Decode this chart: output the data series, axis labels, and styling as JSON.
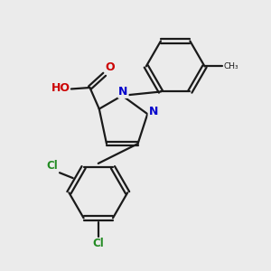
{
  "background_color": "#ebebeb",
  "bond_color": "#1a1a1a",
  "bond_width": 1.6,
  "dbo": 0.07,
  "figsize": [
    3.0,
    3.0
  ],
  "dpi": 100,
  "xlim": [
    0,
    10
  ],
  "ylim": [
    0,
    10
  ],
  "n_color": "#0000cc",
  "o_color": "#cc0000",
  "cl_color": "#228B22",
  "h_color": "#5a8a8a",
  "c_color": "#1a1a1a",
  "methyl_color": "#1a1a1a"
}
